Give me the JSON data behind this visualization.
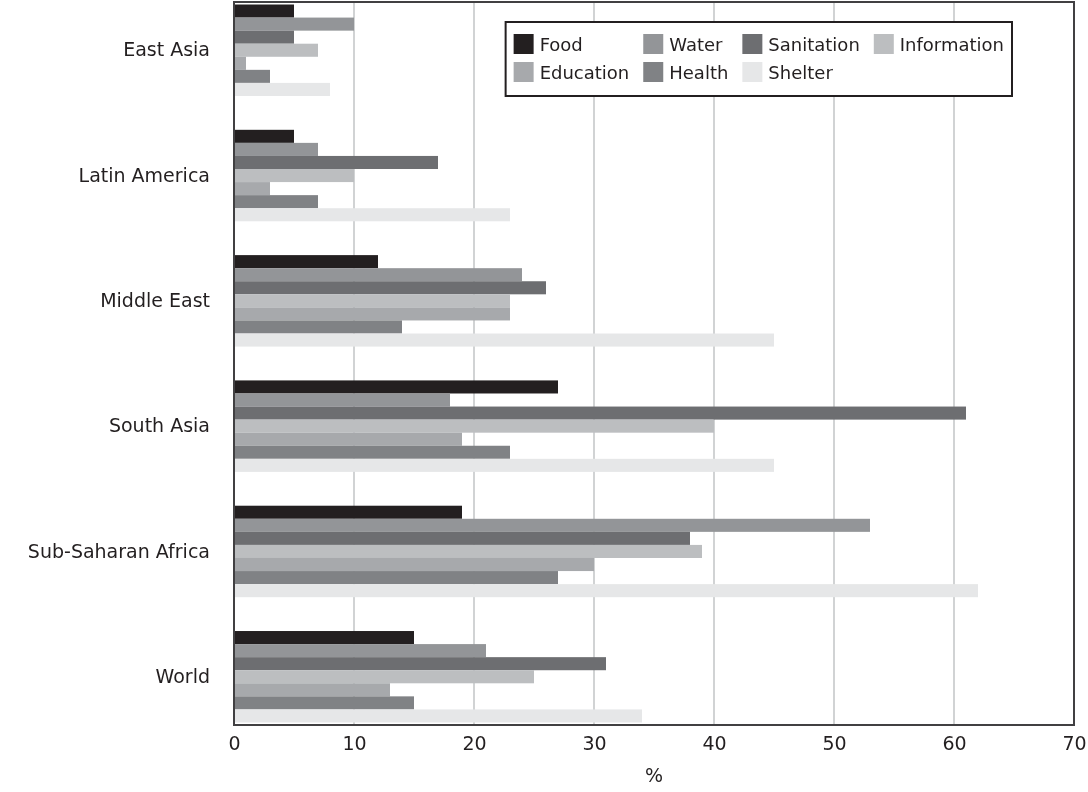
{
  "chart_data": {
    "type": "bar",
    "orientation": "horizontal",
    "xlabel": "%",
    "categories": [
      "East Asia",
      "Latin America",
      "Middle East",
      "South Asia",
      "Sub-Saharan Africa",
      "World"
    ],
    "series": [
      {
        "name": "Food",
        "color": "#231f20",
        "values": [
          5,
          5,
          12,
          27,
          19,
          15
        ]
      },
      {
        "name": "Water",
        "color": "#939598",
        "values": [
          10,
          7,
          24,
          18,
          53,
          21
        ]
      },
      {
        "name": "Sanitation",
        "color": "#6d6e71",
        "values": [
          5,
          17,
          26,
          61,
          38,
          31
        ]
      },
      {
        "name": "Information",
        "color": "#bcbec0",
        "values": [
          7,
          10,
          23,
          40,
          39,
          25
        ]
      },
      {
        "name": "Education",
        "color": "#a7a9ac",
        "values": [
          1,
          3,
          23,
          19,
          30,
          13
        ]
      },
      {
        "name": "Health",
        "color": "#808285",
        "values": [
          3,
          7,
          14,
          23,
          27,
          15
        ]
      },
      {
        "name": "Shelter",
        "color": "#e6e7e8",
        "values": [
          8,
          23,
          45,
          45,
          62,
          34
        ]
      }
    ],
    "xlim": [
      0,
      70
    ],
    "xticks": [
      0,
      10,
      20,
      30,
      40,
      50,
      60,
      70
    ],
    "grid": "x",
    "legend": "top right"
  }
}
